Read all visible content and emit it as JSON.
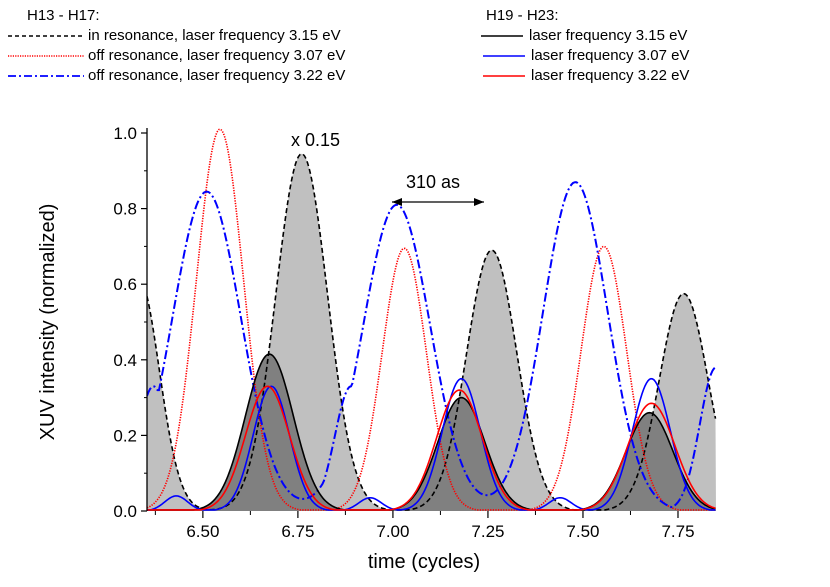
{
  "legend_left": {
    "header": "H13 - H17:",
    "items": [
      {
        "label": "in resonance, laser frequency 3.15 eV",
        "color": "#000000",
        "style": "dashed"
      },
      {
        "label": "off resonance, laser frequency 3.07 eV",
        "color": "#ff0000",
        "style": "dotted"
      },
      {
        "label": "off resonance, laser frequency 3.22 eV",
        "color": "#0000ff",
        "style": "dashdot"
      }
    ]
  },
  "legend_right": {
    "header": "H19 - H23:",
    "items": [
      {
        "label": "laser frequency 3.15 eV",
        "color": "#000000",
        "style": "solid"
      },
      {
        "label": "laser frequency 3.07 eV",
        "color": "#0000ff",
        "style": "solid"
      },
      {
        "label": "laser frequency 3.22 eV",
        "color": "#ff0000",
        "style": "solid"
      }
    ]
  },
  "annotations": {
    "scale": "x 0.15",
    "delay": "310 as"
  },
  "chart_data": {
    "type": "line",
    "title": "",
    "xlabel": "time (cycles)",
    "ylabel": "XUV intensity (normalized)",
    "xlim": [
      6.353,
      7.85
    ],
    "ylim": [
      0.0,
      1.0
    ],
    "xticks": [
      "6.50",
      "6.75",
      "7.00",
      "7.25",
      "7.50",
      "7.75"
    ],
    "xtick_values": [
      6.5,
      6.75,
      7.0,
      7.25,
      7.5,
      7.75
    ],
    "yticks": [
      "0.0",
      "0.2",
      "0.4",
      "0.6",
      "0.8",
      "1.0"
    ],
    "ytick_values": [
      0.0,
      0.2,
      0.4,
      0.6,
      0.8,
      1.0
    ],
    "grid": false,
    "legend_position": "top (above plot, two columns)",
    "series": [
      {
        "name": "H13-H17 in resonance, 3.15 eV",
        "group": "H13 - H17",
        "color": "#000000",
        "style": "dashed",
        "fill": "#c0c0c0",
        "peaks": [
          {
            "x": 6.33,
            "y": 0.62,
            "w": 0.055
          },
          {
            "x": 6.76,
            "y": 0.945,
            "w": 0.068
          },
          {
            "x": 7.26,
            "y": 0.69,
            "w": 0.066
          },
          {
            "x": 7.765,
            "y": 0.575,
            "w": 0.064
          }
        ]
      },
      {
        "name": "H13-H17 off resonance, 3.07 eV",
        "group": "H13 - H17",
        "color": "#ff0000",
        "style": "dotted",
        "peaks": [
          {
            "x": 6.545,
            "y": 1.01,
            "w": 0.062
          },
          {
            "x": 7.03,
            "y": 0.695,
            "w": 0.058
          },
          {
            "x": 7.555,
            "y": 0.7,
            "w": 0.06
          }
        ],
        "baseline_note": "minima ~0.07 near 6.43 and 6.95, ~0.16 near 7.28"
      },
      {
        "name": "H13-H17 off resonance, 3.22 eV",
        "group": "H13 - H17",
        "color": "#0000ff",
        "style": "dashdot",
        "peaks": [
          {
            "x": 6.51,
            "y": 0.845,
            "w": 0.09
          },
          {
            "x": 7.01,
            "y": 0.81,
            "w": 0.088
          },
          {
            "x": 7.48,
            "y": 0.87,
            "w": 0.085
          }
        ],
        "minima": [
          {
            "x": 6.37,
            "y": 0.33
          },
          {
            "x": 6.89,
            "y": 0.33
          },
          {
            "x": 7.38,
            "y": 0.32
          },
          {
            "x": 7.85,
            "y": 0.38
          }
        ]
      },
      {
        "name": "H19-H23 laser frequency 3.15 eV",
        "group": "H19 - H23",
        "color": "#000000",
        "style": "solid",
        "fill": "#808080",
        "peaks": [
          {
            "x": 6.675,
            "y": 0.415,
            "w": 0.063
          },
          {
            "x": 7.18,
            "y": 0.3,
            "w": 0.062
          },
          {
            "x": 7.675,
            "y": 0.26,
            "w": 0.062
          }
        ]
      },
      {
        "name": "H19-H23 laser frequency 3.07 eV",
        "group": "H19 - H23",
        "color": "#0000ff",
        "style": "solid",
        "peaks": [
          {
            "x": 6.68,
            "y": 0.33,
            "w": 0.048
          },
          {
            "x": 7.18,
            "y": 0.35,
            "w": 0.05
          },
          {
            "x": 7.68,
            "y": 0.35,
            "w": 0.05
          },
          {
            "x": 6.43,
            "y": 0.04,
            "w": 0.03
          },
          {
            "x": 6.94,
            "y": 0.035,
            "w": 0.03
          },
          {
            "x": 7.44,
            "y": 0.035,
            "w": 0.03
          }
        ]
      },
      {
        "name": "H19-H23 laser frequency 3.22 eV",
        "group": "H19 - H23",
        "color": "#ff0000",
        "style": "solid",
        "peaks": [
          {
            "x": 6.67,
            "y": 0.33,
            "w": 0.058
          },
          {
            "x": 7.175,
            "y": 0.32,
            "w": 0.06
          },
          {
            "x": 7.68,
            "y": 0.285,
            "w": 0.062
          }
        ]
      }
    ],
    "annotations": [
      {
        "text": "x 0.15",
        "x": 6.77,
        "y": 0.99
      },
      {
        "text": "310 as",
        "x": 7.1,
        "y": 0.87,
        "arrow": {
          "from": 7.02,
          "to": 7.26,
          "y": 0.82,
          "double": true
        }
      }
    ]
  }
}
